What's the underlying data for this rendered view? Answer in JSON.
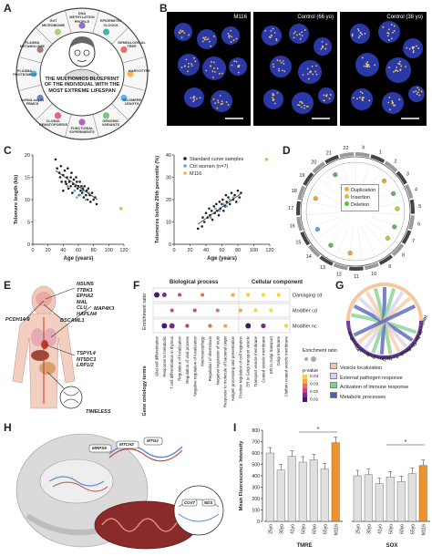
{
  "panels": {
    "a": {
      "letter": "A",
      "center_text": "THE MULTIOMICS BLUEPRINT OF THE INDIVIDUAL WITH THE MOST EXTREME LIFESPAN",
      "segments": [
        "DNA METHYLATION PROFILE",
        "EPIGENETIC CLOCKS",
        "GENEALOGICAL TREE",
        "KARYOTYPE",
        "TELOMERE LENGTH",
        "GENOMIC VARIANTS",
        "FUNCTIONAL EXPERIMENTS",
        "CLONAL HEMATOPOIESIS",
        "scRNA-seq IN PBMCS",
        "PLASMA PROTEOMICS",
        "FLASMA METABOLOME",
        "GUT MICROBIOME"
      ]
    },
    "b": {
      "letter": "B",
      "labels": [
        "M116",
        "Control (66 yo)",
        "Control (38 yo)"
      ]
    },
    "c": {
      "letter": "C",
      "legend": [
        "Standard curve samples",
        "Ctrl women (n=7)",
        "M116"
      ]
    },
    "d": {
      "letter": "D",
      "legend": [
        "Duplication",
        "Insertion",
        "Deletion"
      ],
      "chromosome_labels": [
        "X",
        "1",
        "2",
        "3",
        "4",
        "5",
        "6",
        "7",
        "8",
        "9",
        "10",
        "11",
        "12",
        "13",
        "14",
        "15",
        "16",
        "17",
        "18",
        "19",
        "20",
        "21",
        "22"
      ]
    },
    "e": {
      "letter": "E",
      "genes_top": [
        "NSUN5",
        "TTBK1",
        "EPHA2",
        "MAL",
        "CLU",
        "HAPLN4"
      ],
      "gene_dscaml": "DSCAML1",
      "gene_map4k3": "MAP4K3",
      "gene_pcdh": "PCDH14-9",
      "genes_mid": [
        "TSPYL4",
        "NT5DC1",
        "LRP1/2"
      ],
      "gene_timeless": "TIMELESS"
    },
    "f": {
      "letter": "F",
      "col_headers": [
        "Biological process",
        "Cellular component"
      ],
      "row_labels": [
        "Damaging cd",
        "Modifier cd",
        "Modifier nc"
      ],
      "y_axis_label": "Enrichment ratio",
      "x_axis_label": "Gene ontology terms",
      "legend_title1": "Enrichment ratio",
      "legend_title2": "p-value",
      "pvalue_ticks": [
        "0.04",
        "0.03",
        "0.02",
        "0.01"
      ],
      "terms": [
        "Glial cell differentiation",
        "Response to metabolic",
        "T cell differentiation in thymus",
        "Regulation of localization",
        "Regulation of viral process",
        "Negative regulation of localization",
        "Macroautophagy",
        "Regulation of chemotaxis",
        "Negative regulation of multi",
        "Response to molecule of bacterial origin",
        "Antigen processing and presentation",
        "Positive regulation of cell migration",
        "ER to Golgi transport vesicle",
        "Transport vesicle membrane",
        "Coated vesicle membrane",
        "ER to Golgi transport",
        "Golgi membrane",
        "Clathrin coated vesicle membrane"
      ]
    },
    "g": {
      "letter": "G",
      "genes": [
        "HLA-DRB1",
        "APOE",
        "HLA-A",
        "SEC13",
        "TRIM5",
        "CLTC",
        "HLA-C",
        "AP3B1",
        "IFNAR1",
        "BCL2",
        "EGFR",
        "CUL2",
        "SEC31A",
        "MPO"
      ],
      "legend": [
        "Vesicle localization",
        "External pathogen response",
        "Activation of immune response",
        "Metabolic processes"
      ],
      "colors": [
        "#f4c9a0",
        "#d8d0e8",
        "#7fcf8e",
        "#4a5bb8"
      ]
    },
    "h": {
      "letter": "H",
      "genes": [
        "MRPS9",
        "MTCH2",
        "MTG2",
        "COX7",
        "NDS"
      ]
    },
    "i": {
      "letter": "I",
      "ylabel": "Mean Fluorescence Intensity",
      "group_labels": [
        "TMRE",
        "SOX"
      ],
      "star": "*"
    }
  },
  "chart_data": [
    {
      "type": "scatter",
      "panel": "C-left",
      "xlabel": "Age (years)",
      "ylabel": "Telomere length (kb)",
      "xlim": [
        0,
        120
      ],
      "ylim": [
        0,
        20
      ],
      "xticks": [
        0,
        20,
        40,
        60,
        80,
        100,
        120
      ],
      "yticks": [
        0,
        5,
        10,
        15,
        20
      ],
      "series": [
        {
          "name": "Standard curve samples",
          "color": "#222222",
          "points": [
            [
              35,
              16
            ],
            [
              36,
              15
            ],
            [
              37,
              17.5
            ],
            [
              38,
              14
            ],
            [
              40,
              15.5
            ],
            [
              40,
              12
            ],
            [
              42,
              16.5
            ],
            [
              43,
              14
            ],
            [
              44,
              13.5
            ],
            [
              45,
              15
            ],
            [
              46,
              17
            ],
            [
              47,
              12.5
            ],
            [
              48,
              14
            ],
            [
              50,
              13
            ],
            [
              50,
              15
            ],
            [
              51,
              16
            ],
            [
              52,
              11.5
            ],
            [
              53,
              13.5
            ],
            [
              54,
              14.5
            ],
            [
              55,
              12
            ],
            [
              56,
              13
            ],
            [
              57,
              15
            ],
            [
              58,
              14
            ],
            [
              59,
              12.5
            ],
            [
              60,
              13
            ],
            [
              61,
              11
            ],
            [
              62,
              14
            ],
            [
              63,
              12
            ],
            [
              64,
              13
            ],
            [
              65,
              11.5
            ],
            [
              66,
              12.5
            ],
            [
              67,
              10.5
            ],
            [
              68,
              13
            ],
            [
              70,
              11
            ],
            [
              71,
              12
            ],
            [
              72,
              10
            ],
            [
              73,
              12.5
            ],
            [
              75,
              11
            ],
            [
              76,
              9.5
            ],
            [
              78,
              11.5
            ],
            [
              80,
              10
            ],
            [
              82,
              10.5
            ],
            [
              84,
              9
            ],
            [
              30,
              19
            ],
            [
              32,
              17
            ]
          ]
        },
        {
          "name": "Ctrl women (n=7)",
          "color": "#5aa9d6",
          "points": [
            [
              46,
              13
            ],
            [
              55,
              12
            ],
            [
              58,
              10.5
            ],
            [
              62,
              11
            ],
            [
              66,
              12
            ],
            [
              70,
              10
            ],
            [
              74,
              11.5
            ]
          ]
        },
        {
          "name": "M116",
          "color": "#d9c23a",
          "points": [
            [
              116,
              8
            ]
          ]
        }
      ],
      "trend": [
        [
          30,
          16.5
        ],
        [
          85,
          10
        ]
      ]
    },
    {
      "type": "scatter",
      "panel": "C-right",
      "xlabel": "Age (years)",
      "ylabel": "Telomeres below 20th percentile (%)",
      "xlim": [
        0,
        120
      ],
      "ylim": [
        0,
        40
      ],
      "xticks": [
        0,
        20,
        40,
        60,
        80,
        100,
        120
      ],
      "yticks": [
        0,
        10,
        20,
        30,
        40
      ],
      "series": [
        {
          "name": "Standard curve samples",
          "color": "#222222",
          "points": [
            [
              35,
              8
            ],
            [
              36,
              12
            ],
            [
              38,
              10
            ],
            [
              40,
              14
            ],
            [
              42,
              12
            ],
            [
              44,
              16
            ],
            [
              45,
              13
            ],
            [
              47,
              15
            ],
            [
              48,
              11
            ],
            [
              50,
              17
            ],
            [
              51,
              14
            ],
            [
              53,
              18
            ],
            [
              54,
              15
            ],
            [
              56,
              13
            ],
            [
              57,
              19
            ],
            [
              58,
              16
            ],
            [
              60,
              18
            ],
            [
              61,
              20
            ],
            [
              62,
              15
            ],
            [
              64,
              17
            ],
            [
              65,
              22
            ],
            [
              66,
              19
            ],
            [
              68,
              21
            ],
            [
              70,
              18
            ],
            [
              72,
              23
            ],
            [
              74,
              20
            ],
            [
              76,
              22
            ],
            [
              78,
              19
            ],
            [
              80,
              24
            ],
            [
              82,
              21
            ],
            [
              84,
              23
            ],
            [
              30,
              7
            ]
          ]
        },
        {
          "name": "Ctrl women (n=7)",
          "color": "#5aa9d6",
          "points": [
            [
              46,
              12
            ],
            [
              52,
              16
            ],
            [
              57,
              15
            ],
            [
              62,
              18
            ],
            [
              66,
              17
            ],
            [
              70,
              20
            ],
            [
              74,
              21
            ]
          ]
        },
        {
          "name": "M116",
          "color": "#d9c23a",
          "points": [
            [
              116,
              38
            ]
          ]
        }
      ],
      "trend": [
        [
          30,
          9
        ],
        [
          85,
          23
        ]
      ]
    },
    {
      "type": "bar",
      "panel": "I",
      "ylabel": "Mean Fluorescence Intensity",
      "ylim": [
        0,
        800
      ],
      "yticks": [
        0,
        100,
        200,
        300,
        400,
        500,
        600,
        700,
        800
      ],
      "groups": [
        {
          "name": "TMRE",
          "categories": [
            "25yo",
            "30yo",
            "41yo",
            "50yo",
            "60yo",
            "65yo",
            "M116"
          ],
          "values": [
            600,
            450,
            570,
            520,
            540,
            460,
            690
          ],
          "colors": [
            "#e0e0e0",
            "#e0e0e0",
            "#e0e0e0",
            "#e0e0e0",
            "#e0e0e0",
            "#e0e0e0",
            "#f0922a"
          ]
        },
        {
          "name": "SOX",
          "categories": [
            "25yo",
            "30yo",
            "41yo",
            "50yo",
            "60yo",
            "65yo",
            "M116"
          ],
          "values": [
            400,
            410,
            330,
            390,
            350,
            420,
            490
          ],
          "colors": [
            "#e0e0e0",
            "#e0e0e0",
            "#e0e0e0",
            "#e0e0e0",
            "#e0e0e0",
            "#e0e0e0",
            "#f0922a"
          ]
        }
      ]
    }
  ]
}
